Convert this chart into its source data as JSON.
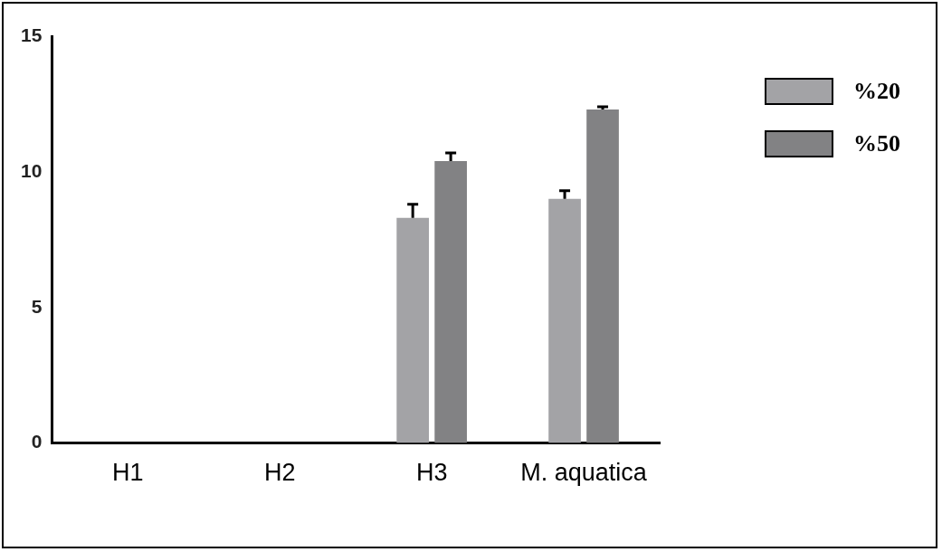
{
  "chart_data": {
    "type": "bar",
    "categories": [
      "H1",
      "H2",
      "H3",
      "M. aquatica"
    ],
    "series": [
      {
        "name": "%20",
        "color": "#a3a3a6",
        "values": [
          0,
          0,
          8.3,
          9.0
        ],
        "errors": [
          null,
          null,
          [
            8.3,
            8.8
          ],
          [
            9.0,
            9.3
          ]
        ]
      },
      {
        "name": "%50",
        "color": "#828284",
        "values": [
          0,
          0,
          10.4,
          12.3
        ],
        "errors": [
          null,
          null,
          [
            10.4,
            10.7
          ],
          [
            12.3,
            12.4
          ]
        ]
      }
    ],
    "ylim": [
      0,
      15
    ],
    "yticks": [
      0,
      5,
      10,
      15
    ],
    "grid": false,
    "legend": "top right"
  }
}
